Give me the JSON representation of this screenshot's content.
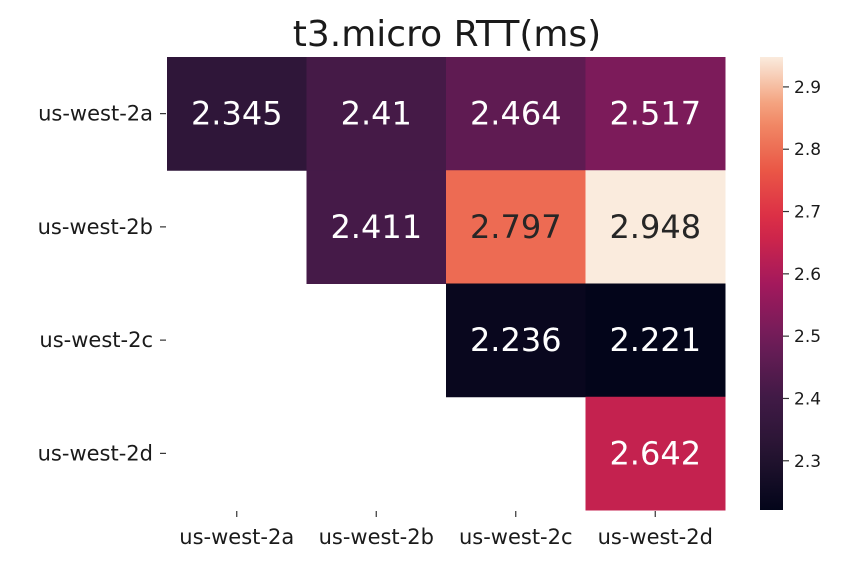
{
  "chart_data": {
    "type": "heatmap",
    "title": "t3.micro RTT(ms)",
    "xlabel": "",
    "ylabel": "",
    "x_categories": [
      "us-west-2a",
      "us-west-2b",
      "us-west-2c",
      "us-west-2d"
    ],
    "y_categories": [
      "us-west-2a",
      "us-west-2b",
      "us-west-2c",
      "us-west-2d"
    ],
    "values": [
      [
        2.345,
        2.41,
        2.464,
        2.517
      ],
      [
        null,
        2.411,
        2.797,
        2.948
      ],
      [
        null,
        null,
        2.236,
        2.221
      ],
      [
        null,
        null,
        null,
        2.642
      ]
    ],
    "value_labels": [
      [
        "2.345",
        "2.41",
        "2.464",
        "2.517"
      ],
      [
        null,
        "2.411",
        "2.797",
        "2.948"
      ],
      [
        null,
        null,
        "2.236",
        "2.221"
      ],
      [
        null,
        null,
        null,
        "2.642"
      ]
    ],
    "colormap": "rocket",
    "colorbar": {
      "range": [
        2.221,
        2.948
      ],
      "ticks": [
        2.3,
        2.4,
        2.5,
        2.6,
        2.7,
        2.8,
        2.9
      ],
      "tick_labels": [
        "2.3",
        "2.4",
        "2.5",
        "2.6",
        "2.7",
        "2.8",
        "2.9"
      ],
      "placement": "right"
    },
    "grid": false
  }
}
